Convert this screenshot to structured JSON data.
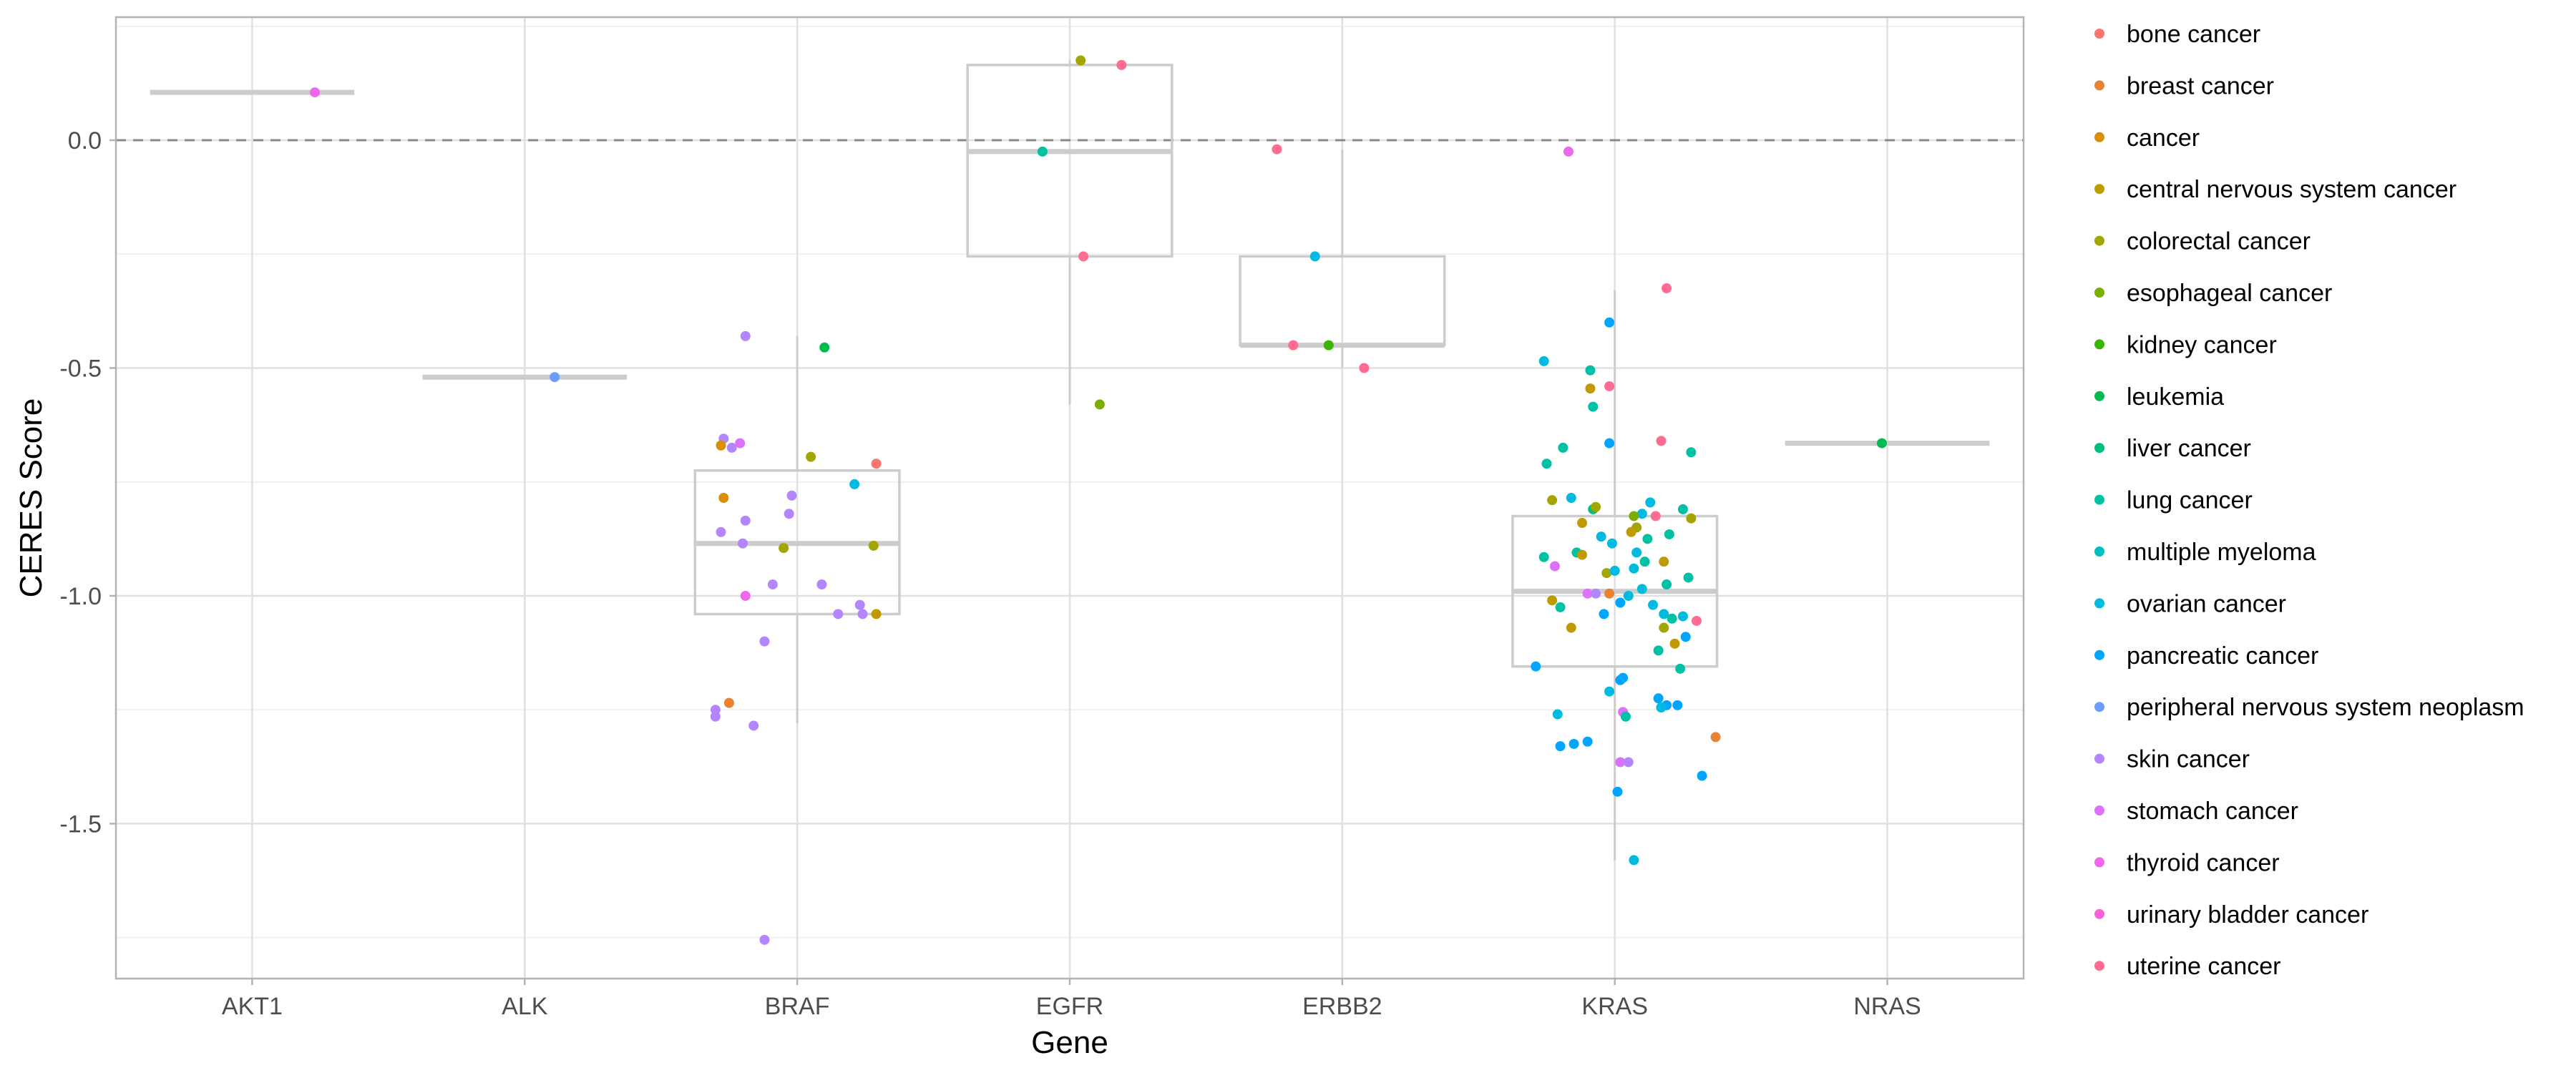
{
  "chart_data": {
    "type": "box-jitter",
    "xlabel": "Gene",
    "ylabel": "CERES Score",
    "ylim": [
      -1.84,
      0.27
    ],
    "yticks": [
      0.0,
      -0.5,
      -1.0,
      -1.5
    ],
    "ytick_labels": [
      "0.0",
      "-0.5",
      "-1.0",
      "-1.5"
    ],
    "reference_line": 0.0,
    "grid": true,
    "legend_position": "right",
    "categories": [
      "AKT1",
      "ALK",
      "BRAF",
      "EGFR",
      "ERBB2",
      "KRAS",
      "NRAS"
    ],
    "legend": [
      {
        "name": "bone cancer",
        "color": "#F8766D"
      },
      {
        "name": "breast cancer",
        "color": "#EA8331"
      },
      {
        "name": "cancer",
        "color": "#D89000"
      },
      {
        "name": "central nervous system cancer",
        "color": "#C09B00"
      },
      {
        "name": "colorectal cancer",
        "color": "#A3A500"
      },
      {
        "name": "esophageal cancer",
        "color": "#7CAE00"
      },
      {
        "name": "kidney cancer",
        "color": "#39B600"
      },
      {
        "name": "leukemia",
        "color": "#00BB4E"
      },
      {
        "name": "liver cancer",
        "color": "#00BF7D"
      },
      {
        "name": "lung cancer",
        "color": "#00C1A3"
      },
      {
        "name": "multiple myeloma",
        "color": "#00BFC4"
      },
      {
        "name": "ovarian cancer",
        "color": "#00BAE0"
      },
      {
        "name": "pancreatic cancer",
        "color": "#00A5FF"
      },
      {
        "name": "peripheral nervous system neoplasm",
        "color": "#6B9DFF"
      },
      {
        "name": "skin cancer",
        "color": "#B385FF"
      },
      {
        "name": "stomach cancer",
        "color": "#DC71FA"
      },
      {
        "name": "thyroid cancer",
        "color": "#EF67EB"
      },
      {
        "name": "urinary bladder cancer",
        "color": "#FB61D7"
      },
      {
        "name": "uterine cancer",
        "color": "#FF6C91"
      }
    ],
    "boxes": [
      {
        "gene": "AKT1",
        "q1": 0.105,
        "median": 0.105,
        "q3": 0.105,
        "whisker_low": 0.105,
        "whisker_high": 0.105
      },
      {
        "gene": "ALK",
        "q1": -0.52,
        "median": -0.52,
        "q3": -0.52,
        "whisker_low": -0.52,
        "whisker_high": -0.52
      },
      {
        "gene": "BRAF",
        "q1": -1.04,
        "median": -0.885,
        "q3": -0.725,
        "whisker_low": -1.28,
        "whisker_high": -0.43
      },
      {
        "gene": "EGFR",
        "q1": -0.255,
        "median": -0.025,
        "q3": 0.165,
        "whisker_low": -0.58,
        "whisker_high": 0.175
      },
      {
        "gene": "ERBB2",
        "q1": -0.45,
        "median": -0.45,
        "q3": -0.255,
        "whisker_low": -0.5,
        "whisker_high": -0.02
      },
      {
        "gene": "KRAS",
        "q1": -1.155,
        "median": -0.99,
        "q3": -0.825,
        "whisker_low": -1.58,
        "whisker_high": -0.33
      },
      {
        "gene": "NRAS",
        "q1": -0.665,
        "median": -0.665,
        "q3": -0.665,
        "whisker_low": -0.665,
        "whisker_high": -0.665
      }
    ],
    "points": [
      {
        "gene": "AKT1",
        "x": 0.23,
        "y": 0.105,
        "type": "thyroid cancer"
      },
      {
        "gene": "ALK",
        "x": 0.11,
        "y": -0.52,
        "type": "peripheral nervous system neoplasm"
      },
      {
        "gene": "BRAF",
        "x": -0.19,
        "y": -0.43,
        "type": "skin cancer"
      },
      {
        "gene": "BRAF",
        "x": 0.1,
        "y": -0.455,
        "type": "leukemia"
      },
      {
        "gene": "BRAF",
        "x": -0.27,
        "y": -0.655,
        "type": "skin cancer"
      },
      {
        "gene": "BRAF",
        "x": -0.28,
        "y": -0.67,
        "type": "cancer"
      },
      {
        "gene": "BRAF",
        "x": -0.24,
        "y": -0.675,
        "type": "skin cancer"
      },
      {
        "gene": "BRAF",
        "x": -0.21,
        "y": -0.665,
        "type": "stomach cancer"
      },
      {
        "gene": "BRAF",
        "x": 0.05,
        "y": -0.695,
        "type": "colorectal cancer"
      },
      {
        "gene": "BRAF",
        "x": 0.29,
        "y": -0.71,
        "type": "bone cancer"
      },
      {
        "gene": "BRAF",
        "x": 0.21,
        "y": -0.755,
        "type": "ovarian cancer"
      },
      {
        "gene": "BRAF",
        "x": -0.27,
        "y": -0.785,
        "type": "cancer"
      },
      {
        "gene": "BRAF",
        "x": -0.02,
        "y": -0.78,
        "type": "skin cancer"
      },
      {
        "gene": "BRAF",
        "x": -0.19,
        "y": -0.835,
        "type": "skin cancer"
      },
      {
        "gene": "BRAF",
        "x": -0.03,
        "y": -0.82,
        "type": "skin cancer"
      },
      {
        "gene": "BRAF",
        "x": -0.28,
        "y": -0.86,
        "type": "skin cancer"
      },
      {
        "gene": "BRAF",
        "x": -0.2,
        "y": -0.885,
        "type": "skin cancer"
      },
      {
        "gene": "BRAF",
        "x": -0.05,
        "y": -0.895,
        "type": "colorectal cancer"
      },
      {
        "gene": "BRAF",
        "x": 0.28,
        "y": -0.89,
        "type": "colorectal cancer"
      },
      {
        "gene": "BRAF",
        "x": -0.09,
        "y": -0.975,
        "type": "skin cancer"
      },
      {
        "gene": "BRAF",
        "x": 0.09,
        "y": -0.975,
        "type": "skin cancer"
      },
      {
        "gene": "BRAF",
        "x": -0.19,
        "y": -1.0,
        "type": "thyroid cancer"
      },
      {
        "gene": "BRAF",
        "x": 0.23,
        "y": -1.02,
        "type": "skin cancer"
      },
      {
        "gene": "BRAF",
        "x": 0.15,
        "y": -1.04,
        "type": "skin cancer"
      },
      {
        "gene": "BRAF",
        "x": 0.24,
        "y": -1.04,
        "type": "skin cancer"
      },
      {
        "gene": "BRAF",
        "x": 0.29,
        "y": -1.04,
        "type": "central nervous system cancer"
      },
      {
        "gene": "BRAF",
        "x": -0.12,
        "y": -1.1,
        "type": "skin cancer"
      },
      {
        "gene": "BRAF",
        "x": -0.25,
        "y": -1.235,
        "type": "breast cancer"
      },
      {
        "gene": "BRAF",
        "x": -0.3,
        "y": -1.25,
        "type": "skin cancer"
      },
      {
        "gene": "BRAF",
        "x": -0.3,
        "y": -1.265,
        "type": "skin cancer"
      },
      {
        "gene": "BRAF",
        "x": -0.16,
        "y": -1.285,
        "type": "skin cancer"
      },
      {
        "gene": "BRAF",
        "x": -0.12,
        "y": -1.755,
        "type": "skin cancer"
      },
      {
        "gene": "EGFR",
        "x": 0.04,
        "y": 0.175,
        "type": "colorectal cancer"
      },
      {
        "gene": "EGFR",
        "x": 0.19,
        "y": 0.165,
        "type": "uterine cancer"
      },
      {
        "gene": "EGFR",
        "x": -0.1,
        "y": -0.025,
        "type": "lung cancer"
      },
      {
        "gene": "EGFR",
        "x": 0.05,
        "y": -0.255,
        "type": "uterine cancer"
      },
      {
        "gene": "EGFR",
        "x": 0.11,
        "y": -0.58,
        "type": "esophageal cancer"
      },
      {
        "gene": "ERBB2",
        "x": -0.24,
        "y": -0.02,
        "type": "uterine cancer"
      },
      {
        "gene": "ERBB2",
        "x": -0.1,
        "y": -0.255,
        "type": "ovarian cancer"
      },
      {
        "gene": "ERBB2",
        "x": -0.18,
        "y": -0.45,
        "type": "uterine cancer"
      },
      {
        "gene": "ERBB2",
        "x": -0.05,
        "y": -0.45,
        "type": "kidney cancer"
      },
      {
        "gene": "ERBB2",
        "x": 0.08,
        "y": -0.5,
        "type": "uterine cancer"
      },
      {
        "gene": "KRAS",
        "x": -0.17,
        "y": -0.025,
        "type": "thyroid cancer"
      },
      {
        "gene": "KRAS",
        "x": 0.19,
        "y": -0.325,
        "type": "uterine cancer"
      },
      {
        "gene": "KRAS",
        "x": -0.02,
        "y": -0.4,
        "type": "pancreatic cancer"
      },
      {
        "gene": "KRAS",
        "x": -0.26,
        "y": -0.485,
        "type": "ovarian cancer"
      },
      {
        "gene": "KRAS",
        "x": -0.09,
        "y": -0.505,
        "type": "lung cancer"
      },
      {
        "gene": "KRAS",
        "x": -0.02,
        "y": -0.54,
        "type": "uterine cancer"
      },
      {
        "gene": "KRAS",
        "x": -0.09,
        "y": -0.545,
        "type": "central nervous system cancer"
      },
      {
        "gene": "KRAS",
        "x": -0.08,
        "y": -0.585,
        "type": "lung cancer"
      },
      {
        "gene": "KRAS",
        "x": -0.02,
        "y": -0.665,
        "type": "pancreatic cancer"
      },
      {
        "gene": "KRAS",
        "x": 0.17,
        "y": -0.66,
        "type": "uterine cancer"
      },
      {
        "gene": "KRAS",
        "x": -0.19,
        "y": -0.675,
        "type": "lung cancer"
      },
      {
        "gene": "KRAS",
        "x": 0.28,
        "y": -0.685,
        "type": "lung cancer"
      },
      {
        "gene": "KRAS",
        "x": -0.25,
        "y": -0.71,
        "type": "lung cancer"
      },
      {
        "gene": "KRAS",
        "x": -0.23,
        "y": -0.79,
        "type": "colorectal cancer"
      },
      {
        "gene": "KRAS",
        "x": -0.16,
        "y": -0.785,
        "type": "ovarian cancer"
      },
      {
        "gene": "KRAS",
        "x": 0.13,
        "y": -0.795,
        "type": "ovarian cancer"
      },
      {
        "gene": "KRAS",
        "x": -0.08,
        "y": -0.81,
        "type": "liver cancer"
      },
      {
        "gene": "KRAS",
        "x": -0.07,
        "y": -0.805,
        "type": "colorectal cancer"
      },
      {
        "gene": "KRAS",
        "x": 0.25,
        "y": -0.81,
        "type": "lung cancer"
      },
      {
        "gene": "KRAS",
        "x": 0.1,
        "y": -0.82,
        "type": "ovarian cancer"
      },
      {
        "gene": "KRAS",
        "x": 0.07,
        "y": -0.825,
        "type": "esophageal cancer"
      },
      {
        "gene": "KRAS",
        "x": 0.15,
        "y": -0.825,
        "type": "uterine cancer"
      },
      {
        "gene": "KRAS",
        "x": 0.28,
        "y": -0.83,
        "type": "colorectal cancer"
      },
      {
        "gene": "KRAS",
        "x": -0.12,
        "y": -0.84,
        "type": "central nervous system cancer"
      },
      {
        "gene": "KRAS",
        "x": 0.08,
        "y": -0.85,
        "type": "colorectal cancer"
      },
      {
        "gene": "KRAS",
        "x": 0.06,
        "y": -0.86,
        "type": "central nervous system cancer"
      },
      {
        "gene": "KRAS",
        "x": 0.2,
        "y": -0.865,
        "type": "lung cancer"
      },
      {
        "gene": "KRAS",
        "x": -0.05,
        "y": -0.87,
        "type": "ovarian cancer"
      },
      {
        "gene": "KRAS",
        "x": -0.01,
        "y": -0.885,
        "type": "ovarian cancer"
      },
      {
        "gene": "KRAS",
        "x": 0.12,
        "y": -0.875,
        "type": "lung cancer"
      },
      {
        "gene": "KRAS",
        "x": -0.14,
        "y": -0.905,
        "type": "lung cancer"
      },
      {
        "gene": "KRAS",
        "x": -0.12,
        "y": -0.91,
        "type": "central nervous system cancer"
      },
      {
        "gene": "KRAS",
        "x": 0.08,
        "y": -0.905,
        "type": "ovarian cancer"
      },
      {
        "gene": "KRAS",
        "x": 0.11,
        "y": -0.925,
        "type": "lung cancer"
      },
      {
        "gene": "KRAS",
        "x": 0.18,
        "y": -0.925,
        "type": "central nervous system cancer"
      },
      {
        "gene": "KRAS",
        "x": -0.26,
        "y": -0.915,
        "type": "lung cancer"
      },
      {
        "gene": "KRAS",
        "x": -0.22,
        "y": -0.935,
        "type": "stomach cancer"
      },
      {
        "gene": "KRAS",
        "x": 0.07,
        "y": -0.94,
        "type": "ovarian cancer"
      },
      {
        "gene": "KRAS",
        "x": -0.03,
        "y": -0.95,
        "type": "colorectal cancer"
      },
      {
        "gene": "KRAS",
        "x": 0.0,
        "y": -0.945,
        "type": "ovarian cancer"
      },
      {
        "gene": "KRAS",
        "x": 0.27,
        "y": -0.96,
        "type": "lung cancer"
      },
      {
        "gene": "KRAS",
        "x": 0.19,
        "y": -0.975,
        "type": "lung cancer"
      },
      {
        "gene": "KRAS",
        "x": 0.1,
        "y": -0.985,
        "type": "ovarian cancer"
      },
      {
        "gene": "KRAS",
        "x": -0.1,
        "y": -0.995,
        "type": "stomach cancer"
      },
      {
        "gene": "KRAS",
        "x": -0.07,
        "y": -0.995,
        "type": "skin cancer"
      },
      {
        "gene": "KRAS",
        "x": -0.02,
        "y": -0.995,
        "type": "breast cancer"
      },
      {
        "gene": "KRAS",
        "x": 0.05,
        "y": -1.0,
        "type": "ovarian cancer"
      },
      {
        "gene": "KRAS",
        "x": -0.23,
        "y": -1.01,
        "type": "central nervous system cancer"
      },
      {
        "gene": "KRAS",
        "x": -0.2,
        "y": -1.025,
        "type": "lung cancer"
      },
      {
        "gene": "KRAS",
        "x": 0.02,
        "y": -1.015,
        "type": "pancreatic cancer"
      },
      {
        "gene": "KRAS",
        "x": 0.14,
        "y": -1.02,
        "type": "ovarian cancer"
      },
      {
        "gene": "KRAS",
        "x": -0.04,
        "y": -1.04,
        "type": "pancreatic cancer"
      },
      {
        "gene": "KRAS",
        "x": 0.18,
        "y": -1.04,
        "type": "ovarian cancer"
      },
      {
        "gene": "KRAS",
        "x": 0.21,
        "y": -1.05,
        "type": "lung cancer"
      },
      {
        "gene": "KRAS",
        "x": 0.25,
        "y": -1.045,
        "type": "ovarian cancer"
      },
      {
        "gene": "KRAS",
        "x": 0.3,
        "y": -1.055,
        "type": "uterine cancer"
      },
      {
        "gene": "KRAS",
        "x": -0.16,
        "y": -1.07,
        "type": "central nervous system cancer"
      },
      {
        "gene": "KRAS",
        "x": 0.18,
        "y": -1.07,
        "type": "colorectal cancer"
      },
      {
        "gene": "KRAS",
        "x": 0.26,
        "y": -1.09,
        "type": "pancreatic cancer"
      },
      {
        "gene": "KRAS",
        "x": 0.22,
        "y": -1.105,
        "type": "central nervous system cancer"
      },
      {
        "gene": "KRAS",
        "x": 0.16,
        "y": -1.12,
        "type": "lung cancer"
      },
      {
        "gene": "KRAS",
        "x": -0.29,
        "y": -1.155,
        "type": "pancreatic cancer"
      },
      {
        "gene": "KRAS",
        "x": 0.24,
        "y": -1.16,
        "type": "lung cancer"
      },
      {
        "gene": "KRAS",
        "x": 0.03,
        "y": -1.18,
        "type": "pancreatic cancer"
      },
      {
        "gene": "KRAS",
        "x": 0.02,
        "y": -1.185,
        "type": "pancreatic cancer"
      },
      {
        "gene": "KRAS",
        "x": -0.02,
        "y": -1.21,
        "type": "ovarian cancer"
      },
      {
        "gene": "KRAS",
        "x": 0.16,
        "y": -1.225,
        "type": "pancreatic cancer"
      },
      {
        "gene": "KRAS",
        "x": 0.19,
        "y": -1.24,
        "type": "pancreatic cancer"
      },
      {
        "gene": "KRAS",
        "x": 0.23,
        "y": -1.24,
        "type": "pancreatic cancer"
      },
      {
        "gene": "KRAS",
        "x": 0.17,
        "y": -1.245,
        "type": "ovarian cancer"
      },
      {
        "gene": "KRAS",
        "x": -0.21,
        "y": -1.26,
        "type": "ovarian cancer"
      },
      {
        "gene": "KRAS",
        "x": 0.03,
        "y": -1.255,
        "type": "stomach cancer"
      },
      {
        "gene": "KRAS",
        "x": 0.04,
        "y": -1.265,
        "type": "lung cancer"
      },
      {
        "gene": "KRAS",
        "x": -0.1,
        "y": -1.32,
        "type": "pancreatic cancer"
      },
      {
        "gene": "KRAS",
        "x": -0.15,
        "y": -1.325,
        "type": "pancreatic cancer"
      },
      {
        "gene": "KRAS",
        "x": 0.37,
        "y": -1.31,
        "type": "breast cancer"
      },
      {
        "gene": "KRAS",
        "x": -0.2,
        "y": -1.33,
        "type": "pancreatic cancer"
      },
      {
        "gene": "KRAS",
        "x": 0.02,
        "y": -1.365,
        "type": "stomach cancer"
      },
      {
        "gene": "KRAS",
        "x": 0.05,
        "y": -1.365,
        "type": "skin cancer"
      },
      {
        "gene": "KRAS",
        "x": 0.32,
        "y": -1.395,
        "type": "pancreatic cancer"
      },
      {
        "gene": "KRAS",
        "x": 0.01,
        "y": -1.43,
        "type": "pancreatic cancer"
      },
      {
        "gene": "KRAS",
        "x": 0.07,
        "y": -1.58,
        "type": "ovarian cancer"
      },
      {
        "gene": "NRAS",
        "x": -0.02,
        "y": -0.665,
        "type": "leukemia"
      }
    ]
  }
}
